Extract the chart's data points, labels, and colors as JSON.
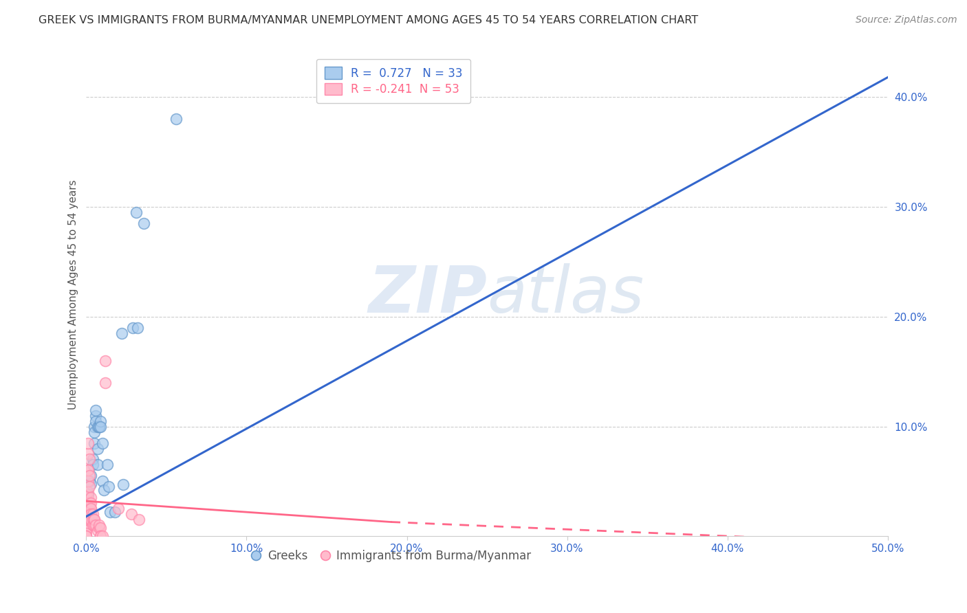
{
  "title": "GREEK VS IMMIGRANTS FROM BURMA/MYANMAR UNEMPLOYMENT AMONG AGES 45 TO 54 YEARS CORRELATION CHART",
  "source": "Source: ZipAtlas.com",
  "ylabel": "Unemployment Among Ages 45 to 54 years",
  "xlim": [
    0.0,
    0.5
  ],
  "ylim": [
    0.0,
    0.44
  ],
  "xticks": [
    0.0,
    0.1,
    0.2,
    0.3,
    0.4,
    0.5
  ],
  "yticks": [
    0.1,
    0.2,
    0.3,
    0.4
  ],
  "xtick_labels": [
    "0.0%",
    "10.0%",
    "20.0%",
    "30.0%",
    "40.0%",
    "50.0%"
  ],
  "ytick_labels": [
    "10.0%",
    "20.0%",
    "30.0%",
    "40.0%"
  ],
  "background_color": "#ffffff",
  "grid_color": "#cccccc",
  "watermark_zip": "ZIP",
  "watermark_atlas": "atlas",
  "legend_R_blue": "0.727",
  "legend_N_blue": "33",
  "legend_R_pink": "-0.241",
  "legend_N_pink": "53",
  "blue_color": "#6699cc",
  "pink_color": "#ff88aa",
  "blue_line": [
    0.0,
    0.5,
    0.018,
    0.418
  ],
  "pink_line_solid": [
    0.0,
    0.19,
    0.032,
    0.013
  ],
  "pink_line_dashed": [
    0.19,
    0.5,
    0.013,
    -0.006
  ],
  "blue_scatter": [
    [
      0.001,
      0.038
    ],
    [
      0.002,
      0.05
    ],
    [
      0.003,
      0.055
    ],
    [
      0.003,
      0.048
    ],
    [
      0.004,
      0.07
    ],
    [
      0.004,
      0.065
    ],
    [
      0.005,
      0.1
    ],
    [
      0.005,
      0.085
    ],
    [
      0.005,
      0.095
    ],
    [
      0.006,
      0.11
    ],
    [
      0.006,
      0.105
    ],
    [
      0.006,
      0.115
    ],
    [
      0.007,
      0.065
    ],
    [
      0.007,
      0.08
    ],
    [
      0.007,
      0.1
    ],
    [
      0.008,
      0.1
    ],
    [
      0.008,
      0.1
    ],
    [
      0.009,
      0.105
    ],
    [
      0.009,
      0.1
    ],
    [
      0.01,
      0.085
    ],
    [
      0.01,
      0.05
    ],
    [
      0.011,
      0.042
    ],
    [
      0.013,
      0.065
    ],
    [
      0.014,
      0.045
    ],
    [
      0.015,
      0.022
    ],
    [
      0.018,
      0.022
    ],
    [
      0.022,
      0.185
    ],
    [
      0.023,
      0.047
    ],
    [
      0.029,
      0.19
    ],
    [
      0.031,
      0.295
    ],
    [
      0.036,
      0.285
    ],
    [
      0.032,
      0.19
    ],
    [
      0.056,
      0.38
    ]
  ],
  "pink_scatter": [
    [
      0.0,
      0.03
    ],
    [
      0.0,
      0.025
    ],
    [
      0.0,
      0.02
    ],
    [
      0.0,
      0.038
    ],
    [
      0.0,
      0.033
    ],
    [
      0.0,
      0.028
    ],
    [
      0.0,
      0.022
    ],
    [
      0.0,
      0.015
    ],
    [
      0.0,
      0.01
    ],
    [
      0.0,
      0.005
    ],
    [
      0.0,
      0.003
    ],
    [
      0.0,
      0.0
    ],
    [
      0.0,
      0.0
    ],
    [
      0.001,
      0.035
    ],
    [
      0.001,
      0.04
    ],
    [
      0.001,
      0.02
    ],
    [
      0.001,
      0.06
    ],
    [
      0.001,
      0.05
    ],
    [
      0.001,
      0.075
    ],
    [
      0.001,
      0.085
    ],
    [
      0.001,
      0.06
    ],
    [
      0.002,
      0.07
    ],
    [
      0.002,
      0.055
    ],
    [
      0.002,
      0.02
    ],
    [
      0.002,
      0.015
    ],
    [
      0.002,
      0.045
    ],
    [
      0.002,
      0.03
    ],
    [
      0.002,
      0.025
    ],
    [
      0.003,
      0.035
    ],
    [
      0.003,
      0.025
    ],
    [
      0.003,
      0.02
    ],
    [
      0.003,
      0.03
    ],
    [
      0.003,
      0.025
    ],
    [
      0.003,
      0.02
    ],
    [
      0.003,
      0.015
    ],
    [
      0.004,
      0.015
    ],
    [
      0.004,
      0.01
    ],
    [
      0.004,
      0.02
    ],
    [
      0.005,
      0.015
    ],
    [
      0.005,
      0.01
    ],
    [
      0.005,
      0.015
    ],
    [
      0.006,
      0.01
    ],
    [
      0.007,
      0.005
    ],
    [
      0.008,
      0.008
    ],
    [
      0.008,
      0.01
    ],
    [
      0.009,
      0.008
    ],
    [
      0.009,
      0.0
    ],
    [
      0.009,
      0.0
    ],
    [
      0.01,
      0.0
    ],
    [
      0.012,
      0.16
    ],
    [
      0.012,
      0.14
    ],
    [
      0.02,
      0.025
    ],
    [
      0.028,
      0.02
    ],
    [
      0.033,
      0.015
    ]
  ],
  "title_fontsize": 11.5,
  "axis_label_fontsize": 11,
  "tick_fontsize": 11,
  "legend_fontsize": 12,
  "source_fontsize": 10
}
